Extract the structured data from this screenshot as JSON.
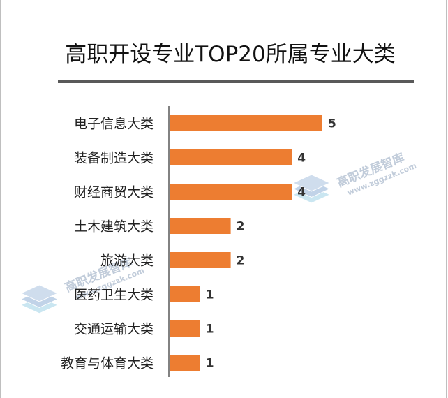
{
  "chart_data": {
    "type": "bar",
    "orientation": "horizontal",
    "title": "高职开设专业TOP20所属专业大类",
    "categories": [
      "电子信息大类",
      "装备制造大类",
      "财经商贸大类",
      "土木建筑大类",
      "旅游大类",
      "医药卫生大类",
      "交通运输大类",
      "教育与体育大类"
    ],
    "values": [
      5,
      4,
      4,
      2,
      2,
      1,
      1,
      1
    ],
    "xlim": [
      0,
      5
    ],
    "grid": false,
    "bar_color": "#ed7d31",
    "data_labels": true
  },
  "watermark": {
    "text": "高职发展智库",
    "url": "www.zggzzk.com",
    "icon": "stacked-layers-icon"
  },
  "colors": {
    "bar": "#ed7d31",
    "title_rule": "#595959",
    "axis": "#595959"
  }
}
